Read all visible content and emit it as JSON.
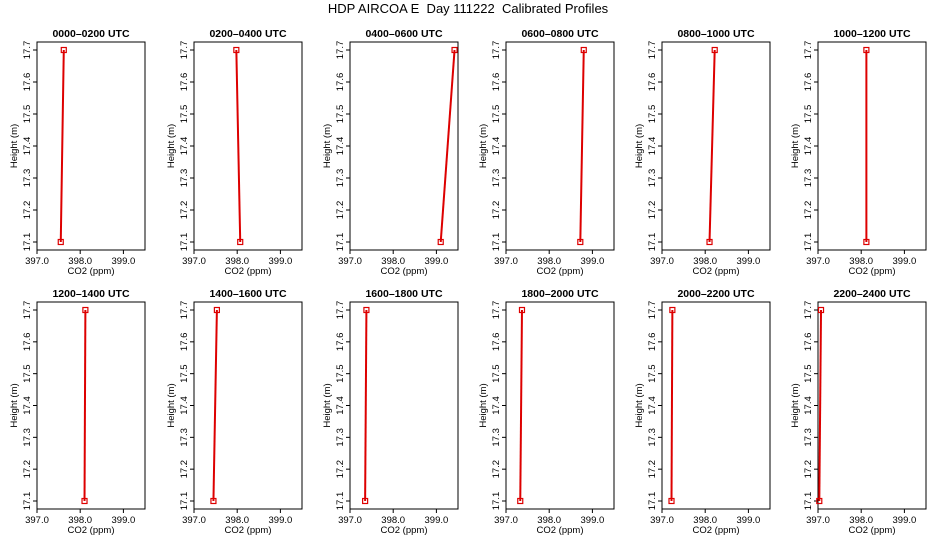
{
  "figure": {
    "title": "HDP AIRCOA E  Day 111222  Calibrated Profiles"
  },
  "colors": {
    "profile": "#dd0000",
    "axes": "#000000"
  },
  "chart_data": [
    {
      "type": "line",
      "title": "0000–0200 UTC",
      "xlabel": "CO2 (ppm)",
      "ylabel": "Height (m)",
      "xlim": [
        397.0,
        399.5
      ],
      "ylim": [
        17.1,
        17.7
      ],
      "xticks": [
        "397.0",
        "398.0",
        "399.0"
      ],
      "yticks": [
        "17.1",
        "17.2",
        "17.3",
        "17.4",
        "17.5",
        "17.6",
        "17.7"
      ],
      "series": [
        {
          "x": [
            397.55,
            397.62
          ],
          "y": [
            17.1,
            17.7
          ]
        }
      ]
    },
    {
      "type": "line",
      "title": "0200–0400 UTC",
      "xlabel": "CO2 (ppm)",
      "ylabel": "Height (m)",
      "xlim": [
        397.0,
        399.5
      ],
      "ylim": [
        17.1,
        17.7
      ],
      "xticks": [
        "397.0",
        "398.0",
        "399.0"
      ],
      "yticks": [
        "17.1",
        "17.2",
        "17.3",
        "17.4",
        "17.5",
        "17.6",
        "17.7"
      ],
      "series": [
        {
          "x": [
            398.07,
            397.98
          ],
          "y": [
            17.1,
            17.7
          ]
        }
      ]
    },
    {
      "type": "line",
      "title": "0400–0600 UTC",
      "xlabel": "CO2 (ppm)",
      "ylabel": "Height (m)",
      "xlim": [
        397.0,
        399.5
      ],
      "ylim": [
        17.1,
        17.7
      ],
      "xticks": [
        "397.0",
        "398.0",
        "399.0"
      ],
      "yticks": [
        "17.1",
        "17.2",
        "17.3",
        "17.4",
        "17.5",
        "17.6",
        "17.7"
      ],
      "series": [
        {
          "x": [
            399.1,
            399.42
          ],
          "y": [
            17.1,
            17.7
          ]
        }
      ]
    },
    {
      "type": "line",
      "title": "0600–0800 UTC",
      "xlabel": "CO2 (ppm)",
      "ylabel": "Height (m)",
      "xlim": [
        397.0,
        399.5
      ],
      "ylim": [
        17.1,
        17.7
      ],
      "xticks": [
        "397.0",
        "398.0",
        "399.0"
      ],
      "yticks": [
        "17.1",
        "17.2",
        "17.3",
        "17.4",
        "17.5",
        "17.6",
        "17.7"
      ],
      "series": [
        {
          "x": [
            398.72,
            398.8
          ],
          "y": [
            17.1,
            17.7
          ]
        }
      ]
    },
    {
      "type": "line",
      "title": "0800–1000 UTC",
      "xlabel": "CO2 (ppm)",
      "ylabel": "Height (m)",
      "xlim": [
        397.0,
        399.5
      ],
      "ylim": [
        17.1,
        17.7
      ],
      "xticks": [
        "397.0",
        "398.0",
        "399.0"
      ],
      "yticks": [
        "17.1",
        "17.2",
        "17.3",
        "17.4",
        "17.5",
        "17.6",
        "17.7"
      ],
      "series": [
        {
          "x": [
            398.1,
            398.22
          ],
          "y": [
            17.1,
            17.7
          ]
        }
      ]
    },
    {
      "type": "line",
      "title": "1000–1200 UTC",
      "xlabel": "CO2 (ppm)",
      "ylabel": "Height (m)",
      "xlim": [
        397.0,
        399.5
      ],
      "ylim": [
        17.1,
        17.7
      ],
      "xticks": [
        "397.0",
        "398.0",
        "399.0"
      ],
      "yticks": [
        "17.1",
        "17.2",
        "17.3",
        "17.4",
        "17.5",
        "17.6",
        "17.7"
      ],
      "series": [
        {
          "x": [
            398.12,
            398.12
          ],
          "y": [
            17.1,
            17.7
          ]
        }
      ]
    },
    {
      "type": "line",
      "title": "1200–1400 UTC",
      "xlabel": "CO2 (ppm)",
      "ylabel": "Height (m)",
      "xlim": [
        397.0,
        399.5
      ],
      "ylim": [
        17.1,
        17.7
      ],
      "xticks": [
        "397.0",
        "398.0",
        "399.0"
      ],
      "yticks": [
        "17.1",
        "17.2",
        "17.3",
        "17.4",
        "17.5",
        "17.6",
        "17.7"
      ],
      "series": [
        {
          "x": [
            398.1,
            398.12
          ],
          "y": [
            17.1,
            17.7
          ]
        }
      ]
    },
    {
      "type": "line",
      "title": "1400–1600 UTC",
      "xlabel": "CO2 (ppm)",
      "ylabel": "Height (m)",
      "xlim": [
        397.0,
        399.5
      ],
      "ylim": [
        17.1,
        17.7
      ],
      "xticks": [
        "397.0",
        "398.0",
        "399.0"
      ],
      "yticks": [
        "17.1",
        "17.2",
        "17.3",
        "17.4",
        "17.5",
        "17.6",
        "17.7"
      ],
      "series": [
        {
          "x": [
            397.45,
            397.53
          ],
          "y": [
            17.1,
            17.7
          ]
        }
      ]
    },
    {
      "type": "line",
      "title": "1600–1800 UTC",
      "xlabel": "CO2 (ppm)",
      "ylabel": "Height (m)",
      "xlim": [
        397.0,
        399.5
      ],
      "ylim": [
        17.1,
        17.7
      ],
      "xticks": [
        "397.0",
        "398.0",
        "399.0"
      ],
      "yticks": [
        "17.1",
        "17.2",
        "17.3",
        "17.4",
        "17.5",
        "17.6",
        "17.7"
      ],
      "series": [
        {
          "x": [
            397.35,
            397.38
          ],
          "y": [
            17.1,
            17.7
          ]
        }
      ]
    },
    {
      "type": "line",
      "title": "1800–2000 UTC",
      "xlabel": "CO2 (ppm)",
      "ylabel": "Height (m)",
      "xlim": [
        397.0,
        399.5
      ],
      "ylim": [
        17.1,
        17.7
      ],
      "xticks": [
        "397.0",
        "398.0",
        "399.0"
      ],
      "yticks": [
        "17.1",
        "17.2",
        "17.3",
        "17.4",
        "17.5",
        "17.6",
        "17.7"
      ],
      "series": [
        {
          "x": [
            397.33,
            397.37
          ],
          "y": [
            17.1,
            17.7
          ]
        }
      ]
    },
    {
      "type": "line",
      "title": "2000–2200 UTC",
      "xlabel": "CO2 (ppm)",
      "ylabel": "Height (m)",
      "xlim": [
        397.0,
        399.5
      ],
      "ylim": [
        17.1,
        17.7
      ],
      "xticks": [
        "397.0",
        "398.0",
        "399.0"
      ],
      "yticks": [
        "17.1",
        "17.2",
        "17.3",
        "17.4",
        "17.5",
        "17.6",
        "17.7"
      ],
      "series": [
        {
          "x": [
            397.22,
            397.24
          ],
          "y": [
            17.1,
            17.7
          ]
        }
      ]
    },
    {
      "type": "line",
      "title": "2200–2400 UTC",
      "xlabel": "CO2 (ppm)",
      "ylabel": "Height (m)",
      "xlim": [
        397.0,
        399.5
      ],
      "ylim": [
        17.1,
        17.7
      ],
      "xticks": [
        "397.0",
        "398.0",
        "399.0"
      ],
      "yticks": [
        "17.1",
        "17.2",
        "17.3",
        "17.4",
        "17.5",
        "17.6",
        "17.7"
      ],
      "series": [
        {
          "x": [
            397.03,
            397.07
          ],
          "y": [
            17.1,
            17.7
          ]
        }
      ]
    }
  ]
}
